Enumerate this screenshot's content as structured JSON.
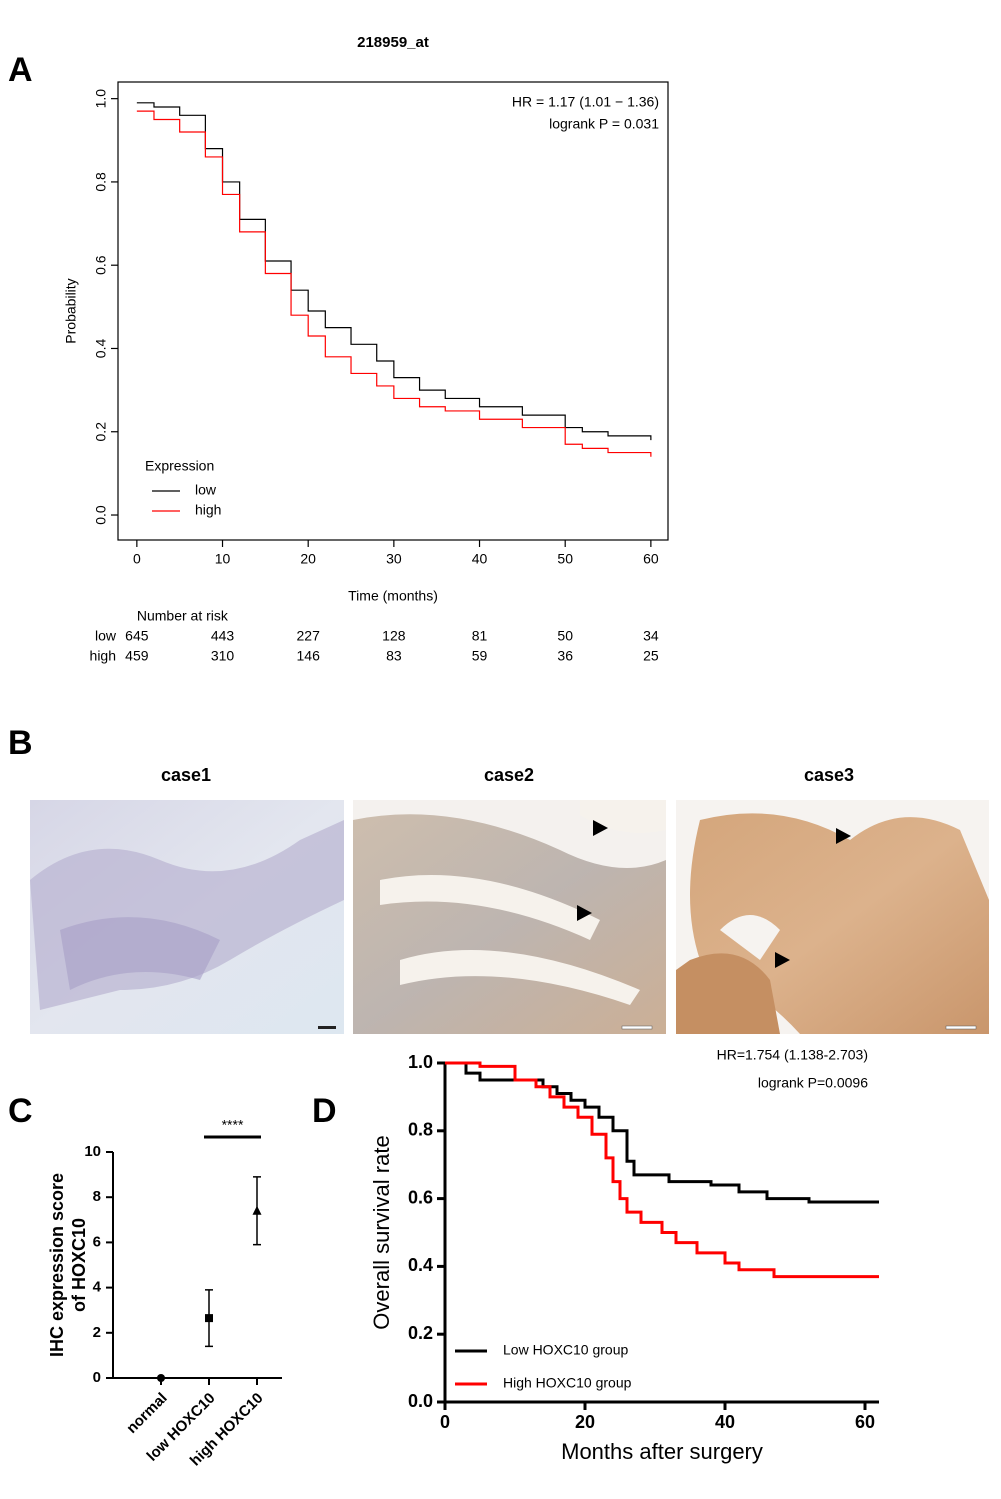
{
  "panel_labels": [
    "A",
    "B",
    "C",
    "D"
  ],
  "images": {
    "titles": [
      "case1",
      "case2",
      "case3"
    ]
  },
  "chart_data": [
    {
      "type": "survival",
      "title": "218959_at",
      "xlabel": "Time (months)",
      "ylabel": "Probability",
      "xlim": [
        -2.2,
        62
      ],
      "ylim": [
        -0.06,
        1.04
      ],
      "xticks": [
        0,
        10,
        20,
        30,
        40,
        50,
        60
      ],
      "yticks": [
        {
          "value": 0,
          "label": "0.0"
        },
        0.2,
        0.4,
        0.6,
        0.8,
        {
          "value": 1,
          "label": "1.0"
        }
      ],
      "annotations": [
        "HR = 1.17 (1.01 − 1.36)",
        "logrank P = 0.031"
      ],
      "legend_title": "Expression",
      "series": [
        {
          "name": "low",
          "color": "#000000",
          "x": [
            0,
            2,
            5,
            8,
            10,
            12,
            15,
            18,
            20,
            22,
            25,
            28,
            30,
            33,
            36,
            40,
            45,
            50,
            52,
            55,
            60
          ],
          "values": [
            0.99,
            0.98,
            0.96,
            0.88,
            0.8,
            0.71,
            0.61,
            0.54,
            0.49,
            0.45,
            0.41,
            0.37,
            0.33,
            0.3,
            0.28,
            0.26,
            0.24,
            0.21,
            0.2,
            0.19,
            0.18
          ]
        },
        {
          "name": "high",
          "color": "#ff0000",
          "x": [
            0,
            2,
            5,
            8,
            10,
            12,
            15,
            18,
            20,
            22,
            25,
            28,
            30,
            33,
            36,
            40,
            45,
            50,
            52,
            55,
            60
          ],
          "values": [
            0.97,
            0.95,
            0.92,
            0.86,
            0.77,
            0.68,
            0.58,
            0.48,
            0.43,
            0.38,
            0.34,
            0.31,
            0.28,
            0.26,
            0.25,
            0.23,
            0.21,
            0.17,
            0.16,
            0.15,
            0.14
          ]
        }
      ],
      "risk_table": {
        "title": "Number at risk",
        "rows": [
          {
            "name": "low",
            "color": "#000000",
            "values": [
              645,
              443,
              227,
              128,
              81,
              50,
              34
            ]
          },
          {
            "name": "high",
            "color": "#ff0000",
            "values": [
              459,
              310,
              146,
              83,
              59,
              36,
              25
            ]
          }
        ]
      }
    },
    {
      "type": "dot",
      "ylabel": [
        "IHC expression score",
        "of HOXC10"
      ],
      "categories": [
        "normal",
        "low HOXC10",
        "high HOXC10"
      ],
      "values": [
        0,
        2.65,
        7.4
      ],
      "errors": [
        0,
        1.25,
        1.5
      ],
      "markers": [
        "circle",
        "square",
        "triangle"
      ],
      "color": "#000000",
      "ylim": [
        0,
        10
      ],
      "yticks": [
        0,
        2,
        4,
        6,
        8,
        10
      ],
      "significance": [
        {
          "label": "****",
          "between": [
            1,
            2
          ]
        }
      ]
    },
    {
      "type": "survival",
      "xlabel": "Months after surgery",
      "ylabel": "Overall survival rate",
      "xlim": [
        0,
        62
      ],
      "ylim": [
        0,
        1
      ],
      "xticks": [
        0,
        20,
        40,
        60
      ],
      "yticks": [
        {
          "value": 0,
          "label": "0.0"
        },
        0.2,
        0.4,
        0.6,
        0.8,
        {
          "value": 1,
          "label": "1.0"
        }
      ],
      "annotations": [
        "HR=1.754 (1.138-2.703)",
        "logrank P=0.0096"
      ],
      "series": [
        {
          "name": "Low HOXC10 group",
          "color": "#000000",
          "x": [
            0,
            3,
            5,
            12,
            14,
            16,
            18,
            20,
            22,
            24,
            26,
            27,
            32,
            38,
            42,
            46,
            52,
            62
          ],
          "values": [
            1,
            0.97,
            0.95,
            0.95,
            0.93,
            0.91,
            0.89,
            0.87,
            0.84,
            0.8,
            0.71,
            0.67,
            0.65,
            0.64,
            0.62,
            0.6,
            0.59,
            0.59
          ]
        },
        {
          "name": "High HOXC10 group",
          "color": "#ff0000",
          "x": [
            0,
            5,
            10,
            13,
            15,
            17,
            19,
            21,
            23,
            24,
            25,
            26,
            28,
            31,
            33,
            36,
            40,
            42,
            47,
            62
          ],
          "values": [
            1,
            0.99,
            0.95,
            0.93,
            0.9,
            0.87,
            0.84,
            0.79,
            0.72,
            0.65,
            0.6,
            0.56,
            0.53,
            0.5,
            0.47,
            0.44,
            0.41,
            0.39,
            0.37,
            0.37
          ]
        }
      ]
    }
  ]
}
